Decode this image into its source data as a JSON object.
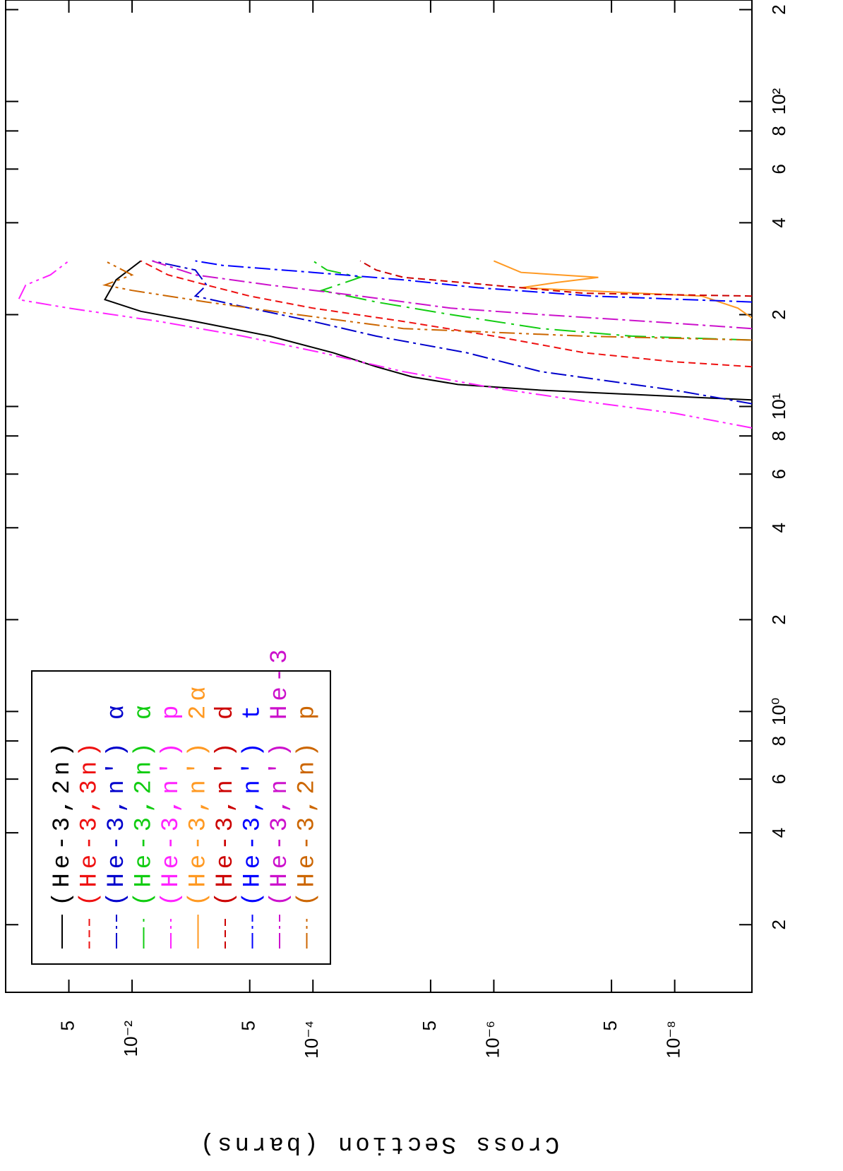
{
  "chart_data": {
    "type": "line",
    "ylabel": "Cross Section (barns)",
    "xlog": true,
    "ylog": true,
    "xlim": [
      0.12,
      215
    ],
    "ylim": [
      1.4e-09,
      0.25
    ],
    "xticks": [
      {
        "value": 0.2,
        "label": "2"
      },
      {
        "value": 0.4,
        "label": "4"
      },
      {
        "value": 0.6,
        "label": "6"
      },
      {
        "value": 0.8,
        "label": "8"
      },
      {
        "value": 1,
        "label": "10⁰"
      },
      {
        "value": 2,
        "label": "2"
      },
      {
        "value": 4,
        "label": "4"
      },
      {
        "value": 6,
        "label": "6"
      },
      {
        "value": 8,
        "label": "8"
      },
      {
        "value": 10,
        "label": "10¹"
      },
      {
        "value": 20,
        "label": "2"
      },
      {
        "value": 40,
        "label": "4"
      },
      {
        "value": 60,
        "label": "6"
      },
      {
        "value": 80,
        "label": "8"
      },
      {
        "value": 100,
        "label": "10²"
      },
      {
        "value": 200,
        "label": "2"
      }
    ],
    "yticks": [
      {
        "value": 0.05,
        "label": "5"
      },
      {
        "value": 0.01,
        "label": "10⁻²"
      },
      {
        "value": 0.0005,
        "label": "5"
      },
      {
        "value": 0.0001,
        "label": "10⁻⁴"
      },
      {
        "value": 5e-06,
        "label": "5"
      },
      {
        "value": 1e-06,
        "label": "10⁻⁶"
      },
      {
        "value": 5e-08,
        "label": "5"
      },
      {
        "value": 1e-08,
        "label": "10⁻⁸"
      }
    ],
    "legend": "upper left",
    "series": [
      {
        "name": "(He-3,2n)",
        "color": "#000000",
        "dash": "solid",
        "x": [
          10.5,
          11.3,
          11.8,
          12.5,
          13.5,
          15,
          17,
          19,
          20.5,
          22.4,
          26,
          30
        ],
        "values": [
          1.4e-09,
          3e-07,
          2.5e-06,
          8e-06,
          2e-05,
          6e-05,
          0.0003,
          0.002,
          0.008,
          0.02,
          0.015,
          0.008
        ]
      },
      {
        "name": "(He-3,3n)",
        "color": "#ee1111",
        "dash": "dashed",
        "x": [
          13.5,
          14,
          15,
          17,
          19,
          21,
          23,
          25,
          27,
          30
        ],
        "values": [
          1.4e-09,
          1e-08,
          1e-07,
          1e-06,
          1e-05,
          0.0001,
          0.0005,
          0.0015,
          0.004,
          0.008
        ]
      },
      {
        "name": "(He-3,n') α",
        "color": "#0000cc",
        "dash": "dashdot",
        "x": [
          10.2,
          11.3,
          13,
          15,
          17,
          19,
          21,
          23,
          25,
          28,
          30
        ],
        "values": [
          1.4e-09,
          1e-08,
          3e-07,
          2e-06,
          2e-05,
          0.0001,
          0.0005,
          0.002,
          0.0015,
          0.002,
          0.006
        ]
      },
      {
        "name": "(He-3,2n) α",
        "color": "#11cc11",
        "dash": "longdashdot",
        "x": [
          16.5,
          17,
          18,
          20,
          22,
          24,
          26.5,
          28,
          30
        ],
        "values": [
          1.4e-09,
          3e-08,
          3e-07,
          3e-06,
          2e-05,
          8e-05,
          3e-05,
          7e-05,
          0.0001
        ]
      },
      {
        "name": "(He-3,n') p",
        "color": "#ff22ff",
        "dash": "dashdotdot",
        "x": [
          8.5,
          9.5,
          10.3,
          11.5,
          13,
          15,
          17,
          19,
          21,
          22.4,
          25,
          27,
          30
        ],
        "values": [
          1.4e-09,
          1e-08,
          8e-08,
          1e-06,
          1e-05,
          8e-05,
          0.0006,
          0.005,
          0.05,
          0.18,
          0.15,
          0.08,
          0.05
        ]
      },
      {
        "name": "(He-3,n') 2α",
        "color": "#ff9922",
        "dash": "solid",
        "x": [
          19.5,
          21,
          23,
          24.5,
          25.5,
          26.5,
          27.5,
          30
        ],
        "values": [
          1.4e-09,
          2e-09,
          5e-09,
          5e-07,
          2e-07,
          7e-08,
          5e-07,
          1e-06
        ]
      },
      {
        "name": "(He-3,n') d",
        "color": "#cc0000",
        "dash": "dashed",
        "x": [
          23,
          23.5,
          24.5,
          26.5,
          28,
          30
        ],
        "values": [
          1.4e-09,
          1e-07,
          5e-07,
          1e-05,
          2e-05,
          3e-05
        ]
      },
      {
        "name": "(He-3,n') t",
        "color": "#0000ff",
        "dash": "dashdot",
        "x": [
          22,
          23,
          24.5,
          26,
          27.5,
          29,
          30
        ],
        "values": [
          1.4e-09,
          8e-08,
          1.5e-06,
          1e-05,
          0.0001,
          0.001,
          0.002
        ]
      },
      {
        "name": "(He-3,n') He-3",
        "color": "#cc11cc",
        "dash": "dashdot",
        "x": [
          18,
          19,
          20,
          21,
          23,
          25,
          27,
          30
        ],
        "values": [
          1.4e-09,
          2e-08,
          3e-07,
          3e-06,
          3e-05,
          0.0003,
          0.002,
          0.006
        ]
      },
      {
        "name": "(He-3,2n) p",
        "color": "#cc6600",
        "dash": "dashdotdot",
        "x": [
          16.5,
          17,
          18,
          20,
          22,
          24,
          25,
          27,
          30
        ],
        "values": [
          1.4e-09,
          1e-07,
          1e-05,
          0.00015,
          0.0015,
          0.01,
          0.02,
          0.01,
          0.02
        ]
      }
    ]
  }
}
